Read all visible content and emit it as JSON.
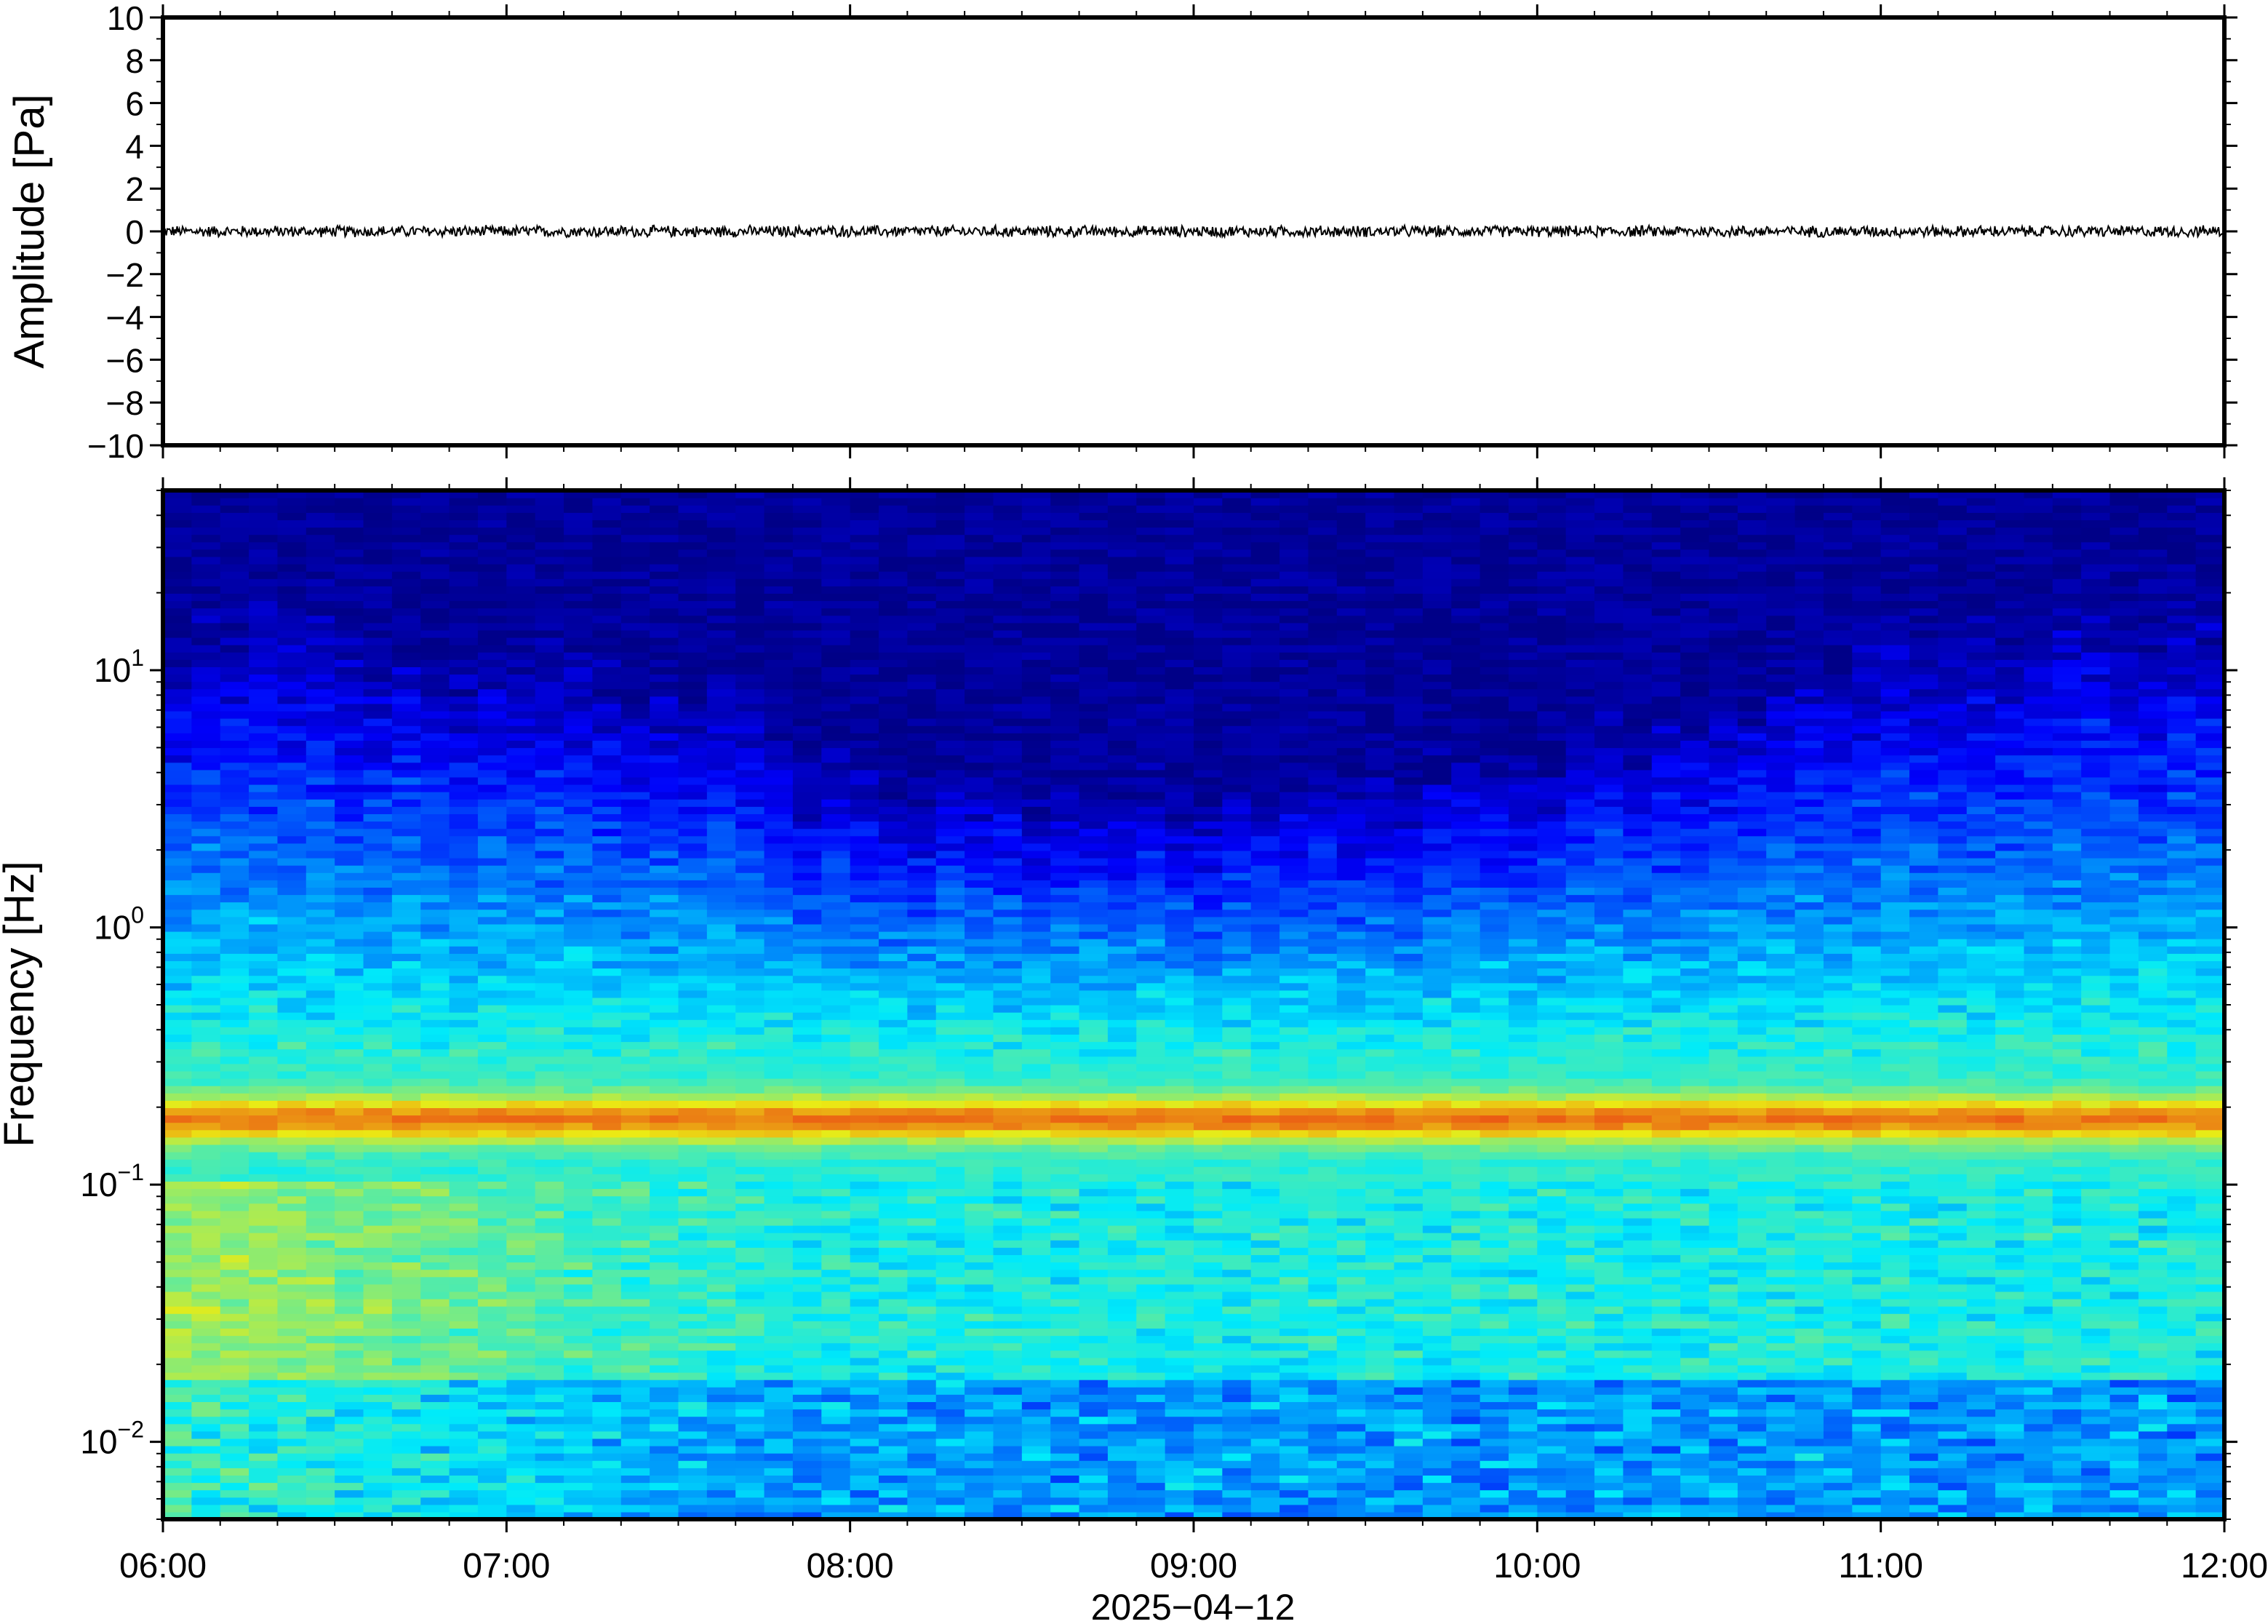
{
  "chart_data": [
    {
      "type": "line",
      "ylabel": "Amplitude [Pa]",
      "ylim": [
        -10,
        10
      ],
      "yticks": [
        "10",
        "8",
        "6",
        "4",
        "2",
        "0",
        "−2",
        "−4",
        "−6",
        "−8",
        "−10"
      ],
      "ytick_values": [
        10,
        8,
        6,
        4,
        2,
        0,
        -2,
        -4,
        -6,
        -8,
        -10
      ],
      "x_range": [
        "2025-04-12 06:00",
        "2025-04-12 12:00"
      ],
      "series": [
        {
          "signal_description": "near-zero noise trace",
          "approx_peak_amplitude": 0.3,
          "color": "#000000"
        }
      ]
    },
    {
      "type": "heatmap",
      "ylabel": "Frequency [Hz]",
      "yscale": "log",
      "ylim": [
        0.005,
        50
      ],
      "yticks": [
        {
          "base": "10",
          "exp": "1",
          "value": 10
        },
        {
          "base": "10",
          "exp": "0",
          "value": 1
        },
        {
          "base": "10",
          "exp": "−1",
          "value": 0.1
        },
        {
          "base": "10",
          "exp": "−2",
          "value": 0.01
        }
      ],
      "xlabel": "2025−04−12",
      "xticks": [
        "06:00",
        "07:00",
        "08:00",
        "09:00",
        "10:00",
        "11:00",
        "12:00"
      ],
      "xlim": [
        "2025-04-12 06:00",
        "2025-04-12 12:00"
      ],
      "colormap": "jet",
      "dominant_band_hz": 0.18,
      "colors": {
        "low": "#0a0078",
        "high": "#e85a2a"
      }
    }
  ]
}
